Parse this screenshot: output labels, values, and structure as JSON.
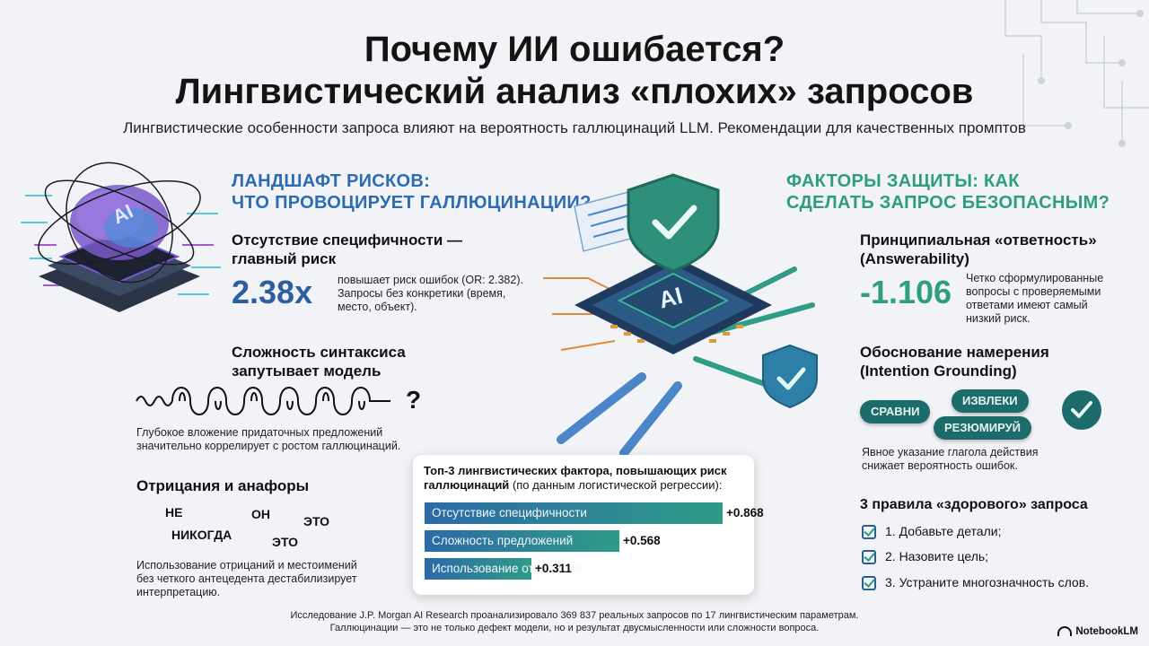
{
  "title": {
    "line1": "Почему ИИ ошибается?",
    "line2": "Лингвистический анализ «плохих» запросов"
  },
  "subtitle": "Лингвистические особенности запроса влияют на вероятность галлюцинаций LLM. Рекомендации для качественных промптов",
  "risks": {
    "heading1": "ЛАНДШАФТ РИСКОВ:",
    "heading2": "ЧТО ПРОВОЦИРУЕТ ГАЛЛЮЦИНАЦИИ?",
    "chip_label": "AI",
    "specificity": {
      "title1": "Отсутствие специфичности —",
      "title2": "главный риск",
      "value": "2.38x",
      "desc1": "повышает риск ошибок (OR: 2.382).",
      "desc2": "Запросы без конкретики (время,",
      "desc3": "место, объект)."
    },
    "syntax": {
      "title1": "Сложность синтаксиса",
      "title2": "запутывает модель",
      "question_mark": "?",
      "desc1": "Глубокое вложение придаточных предложений",
      "desc2": "значительно коррелирует с ростом галлюцинаций."
    },
    "negation": {
      "title": "Отрицания и анафоры",
      "words": [
        "НЕ",
        "ОН",
        "ЭТО",
        "НИКОГДА",
        "ЭТО"
      ],
      "desc1": "Использование отрицаний и местоимений",
      "desc2": "без четкого антецедента дестабилизирует",
      "desc3": "интерпретацию."
    }
  },
  "protection": {
    "heading1": "ФАКТОРЫ ЗАЩИТЫ: КАК",
    "heading2": "СДЕЛАТЬ ЗАПРОС БЕЗОПАСНЫМ?",
    "answerability": {
      "title1": "Принципиальная «ответность»",
      "title2": "(Answerability)",
      "value": "-1.106",
      "desc1": "Четко сформулированные",
      "desc2": "вопросы с проверяемыми",
      "desc3": "ответами имеют самый",
      "desc4": "низкий риск."
    },
    "intention": {
      "title1": "Обоснование намерения",
      "title2": "(Intention Grounding)",
      "verbs": [
        "СРАВНИ",
        "ИЗВЛЕКИ",
        "РЕЗЮМИРУЙ"
      ],
      "desc1": "Явное указание глагола действия",
      "desc2": "снижает вероятность ошибок."
    },
    "rules": {
      "title": "3 правила «здорового» запроса",
      "items": [
        "1. Добавьте детали;",
        "2. Назовите цель;",
        "3. Устраните многозначность слов."
      ]
    }
  },
  "center_chip_label": "AI",
  "chart_data": {
    "type": "bar",
    "orientation": "horizontal",
    "title": "Топ-3 лингвистических фактора, повышающих риск",
    "title_line2": "галлюцинаций",
    "title_note": "(по данным логистической регрессии):",
    "categories": [
      "Отсутствие специфичности",
      "Сложность предложений",
      "Использование отрицаний"
    ],
    "values": [
      0.868,
      0.568,
      0.311
    ],
    "value_labels": [
      "+0.868",
      "+0.568",
      "+0.311"
    ],
    "grid": false,
    "legend": "none",
    "colors": {
      "start": "#2c6aa8",
      "end": "#2f9c86"
    }
  },
  "footer": {
    "line1": "Исследование J.P. Morgan AI Research проанализировало 369 837 реальных запросов по 17 лингвистическим параметрам.",
    "line2": "Галлюцинации — это не только дефект модели, но и результат двусмысленности или сложности вопроса."
  },
  "brand": "NotebookLM",
  "colors": {
    "blue_accent": "#2d6bb3",
    "green_accent": "#2e9e7a",
    "pill": "#1d6c6c"
  }
}
